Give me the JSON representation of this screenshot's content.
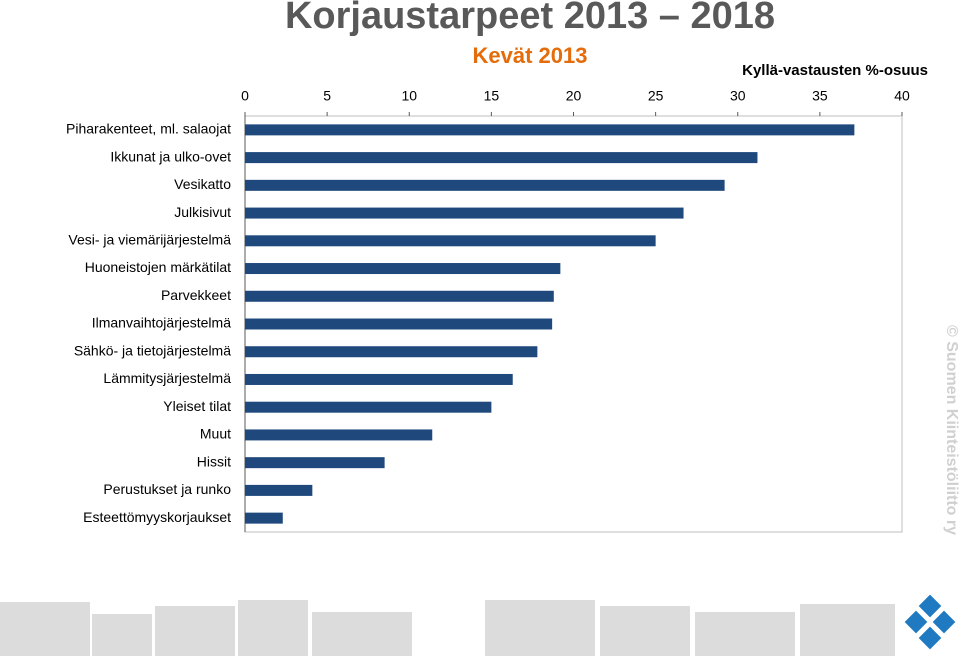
{
  "chart_data": {
    "type": "hbar",
    "title": "Korjaustarpeet  2013 – 2018",
    "subtitle": "Kevät 2013",
    "x_label": "Kyllä-vastausten %-osuus",
    "watermark": "© Suomen Kiinteistöliitto ry",
    "categories": [
      "Piharakenteet, ml. salaojat",
      "Ikkunat ja ulko-ovet",
      "Vesikatto",
      "Julkisivut",
      "Vesi- ja viemärijärjestelmä",
      "Huoneistojen märkätilat",
      "Parvekkeet",
      "Ilmanvaihtojärjestelmä",
      "Sähkö- ja tietojärjestelmä",
      "Lämmitysjärjestelmä",
      "Yleiset tilat",
      "Muut",
      "Hissit",
      "Perustukset ja runko",
      "Esteettömyyskorjaukset"
    ],
    "values": [
      37.1,
      31.2,
      29.2,
      26.7,
      25.0,
      19.2,
      18.8,
      18.7,
      17.8,
      16.3,
      15.0,
      11.4,
      8.5,
      4.1,
      2.3
    ],
    "color": "#1f497d",
    "xlim": [
      0,
      40
    ],
    "xticks": [
      0,
      5,
      10,
      15,
      20,
      25,
      30,
      35,
      40
    ],
    "grid": false
  }
}
